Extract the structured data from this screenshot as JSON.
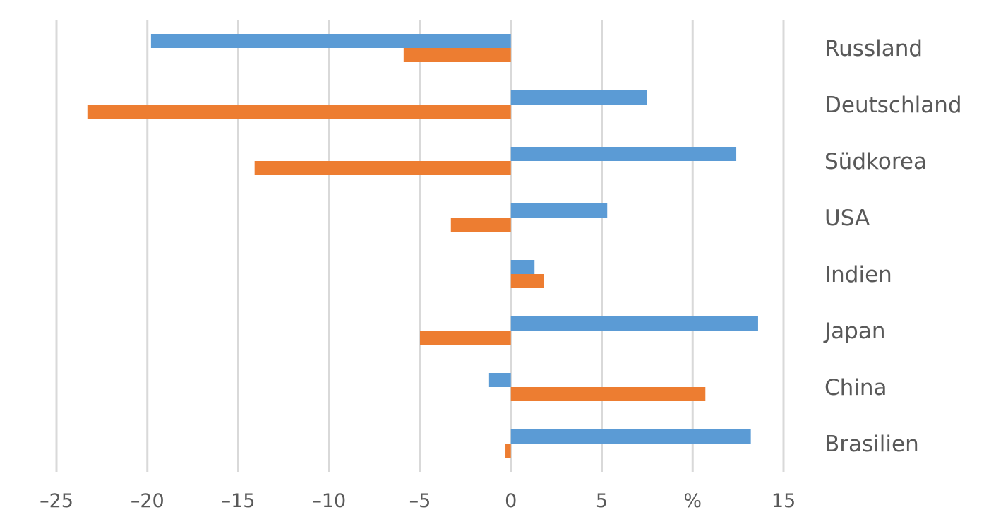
{
  "chart_data": {
    "type": "bar",
    "orientation": "horizontal",
    "categories": [
      "Russland",
      "Deutschland",
      "Südkorea",
      "USA",
      "Indien",
      "Japan",
      "China",
      "Brasilien"
    ],
    "series": [
      {
        "color": "#5b9bd5",
        "values": [
          -19.8,
          7.5,
          12.4,
          5.3,
          1.3,
          13.6,
          -1.2,
          13.2
        ]
      },
      {
        "color": "#ed7d31",
        "values": [
          -5.9,
          -23.3,
          -14.1,
          -3.3,
          1.8,
          -5.0,
          10.7,
          -0.3
        ]
      }
    ],
    "xlim": [
      -25,
      15
    ],
    "xticks": [
      "–25",
      "–20",
      "–15",
      "–10",
      "–5",
      "0",
      "5",
      "%",
      "15"
    ],
    "xtick_values": [
      -25,
      -20,
      -15,
      -10,
      -5,
      0,
      5,
      10,
      15
    ],
    "grid": "vertical",
    "legend": "none"
  }
}
